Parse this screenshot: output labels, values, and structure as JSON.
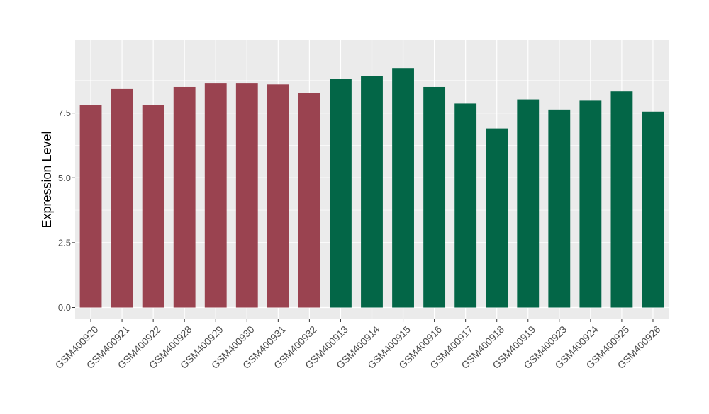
{
  "chart_data": {
    "type": "bar",
    "ylabel": "Expression Level",
    "xlabel": "",
    "title": "",
    "ylim": [
      -0.45,
      10.3
    ],
    "yticks": [
      0.0,
      2.5,
      5.0,
      7.5
    ],
    "ytick_labels": [
      "0.0",
      "2.5",
      "5.0",
      "7.5"
    ],
    "grid": true,
    "panel_background": "#ebebeb",
    "grid_color": "#ffffff",
    "categories": [
      "GSM400920",
      "GSM400921",
      "GSM400922",
      "GSM400928",
      "GSM400929",
      "GSM400930",
      "GSM400931",
      "GSM400932",
      "GSM400913",
      "GSM400914",
      "GSM400915",
      "GSM400916",
      "GSM400917",
      "GSM400918",
      "GSM400919",
      "GSM400923",
      "GSM400924",
      "GSM400925",
      "GSM400926"
    ],
    "values": [
      7.8,
      8.42,
      7.8,
      8.5,
      8.66,
      8.66,
      8.6,
      8.27,
      8.8,
      8.92,
      9.23,
      8.5,
      7.86,
      6.9,
      8.02,
      7.63,
      7.97,
      8.33,
      7.55
    ],
    "groups": [
      {
        "color": "#9a4350",
        "categories": [
          "GSM400920",
          "GSM400921",
          "GSM400922",
          "GSM400928",
          "GSM400929",
          "GSM400930",
          "GSM400931",
          "GSM400932"
        ]
      },
      {
        "color": "#036647",
        "categories": [
          "GSM400913",
          "GSM400914",
          "GSM400915",
          "GSM400916",
          "GSM400917",
          "GSM400918",
          "GSM400919",
          "GSM400923",
          "GSM400924",
          "GSM400925",
          "GSM400926"
        ]
      }
    ]
  }
}
